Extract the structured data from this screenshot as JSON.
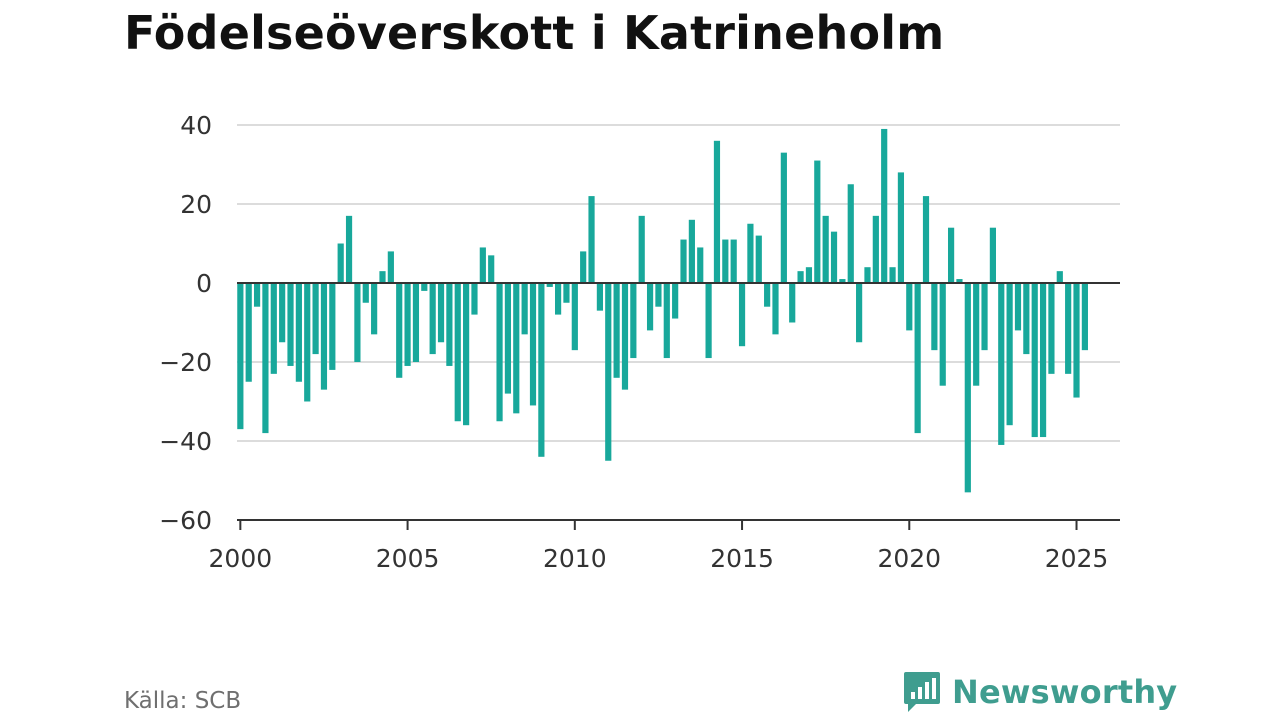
{
  "title": "Födelseöverskott i Katrineholm",
  "source": "Källa: SCB",
  "brand": {
    "name": "Newsworthy",
    "logo_icon": "newsworthy-logo-icon",
    "color": "#3f9d8f"
  },
  "chart_data": {
    "type": "bar",
    "title": "Födelseöverskott i Katrineholm",
    "xlabel": "",
    "ylabel": "",
    "ylim": [
      -60,
      40
    ],
    "xlim": [
      1999.9,
      2026.3
    ],
    "yticks": [
      40,
      20,
      0,
      -20,
      -40,
      -60
    ],
    "ytick_labels": [
      "40",
      "20",
      "0",
      "−20",
      "−40",
      "−60"
    ],
    "xticks": [
      2000,
      2005,
      2010,
      2015,
      2020,
      2025
    ],
    "xtick_labels": [
      "2000",
      "2005",
      "2010",
      "2015",
      "2020",
      "2025"
    ],
    "grid": true,
    "bar_color": "#18a89b",
    "x": [
      2000.0,
      2000.25,
      2000.5,
      2000.75,
      2001.0,
      2001.25,
      2001.5,
      2001.75,
      2002.0,
      2002.25,
      2002.5,
      2002.75,
      2003.0,
      2003.25,
      2003.5,
      2003.75,
      2004.0,
      2004.25,
      2004.5,
      2004.75,
      2005.0,
      2005.25,
      2005.5,
      2005.75,
      2006.0,
      2006.25,
      2006.5,
      2006.75,
      2007.0,
      2007.25,
      2007.5,
      2007.75,
      2008.0,
      2008.25,
      2008.5,
      2008.75,
      2009.0,
      2009.25,
      2009.5,
      2009.75,
      2010.0,
      2010.25,
      2010.5,
      2010.75,
      2011.0,
      2011.25,
      2011.5,
      2011.75,
      2012.0,
      2012.25,
      2012.5,
      2012.75,
      2013.0,
      2013.25,
      2013.5,
      2013.75,
      2014.0,
      2014.25,
      2014.5,
      2014.75,
      2015.0,
      2015.25,
      2015.5,
      2015.75,
      2016.0,
      2016.25,
      2016.5,
      2016.75,
      2017.0,
      2017.25,
      2017.5,
      2017.75,
      2018.0,
      2018.25,
      2018.5,
      2018.75,
      2019.0,
      2019.25,
      2019.5,
      2019.75,
      2020.0,
      2020.25,
      2020.5,
      2020.75,
      2021.0,
      2021.25,
      2021.5,
      2021.75,
      2022.0,
      2022.25,
      2022.5,
      2022.75,
      2023.0,
      2023.25,
      2023.5,
      2023.75,
      2024.0,
      2024.25,
      2024.5,
      2024.75,
      2025.0,
      2025.25
    ],
    "values": [
      -37,
      -25,
      -6,
      -38,
      -23,
      -15,
      -21,
      -25,
      -30,
      -18,
      -27,
      -22,
      10,
      17,
      -20,
      -5,
      -13,
      3,
      8,
      -24,
      -21,
      -20,
      -2,
      -18,
      -15,
      -21,
      -35,
      -36,
      -8,
      9,
      7,
      -35,
      -28,
      -33,
      -13,
      -31,
      -44,
      -1,
      -8,
      -5,
      -17,
      8,
      22,
      -7,
      -45,
      -24,
      -27,
      -19,
      17,
      -12,
      -6,
      -19,
      -9,
      11,
      16,
      9,
      -19,
      36,
      11,
      11,
      -16,
      15,
      12,
      -6,
      -13,
      33,
      -10,
      3,
      4,
      31,
      17,
      13,
      1,
      25,
      -15,
      4,
      17,
      39,
      4,
      28,
      -12,
      -38,
      22,
      -17,
      -26,
      14,
      1,
      -53,
      -26,
      -17,
      14,
      -41,
      -36,
      -12,
      -18,
      -39,
      -39,
      -23,
      3,
      -23,
      -29,
      -17
    ]
  }
}
